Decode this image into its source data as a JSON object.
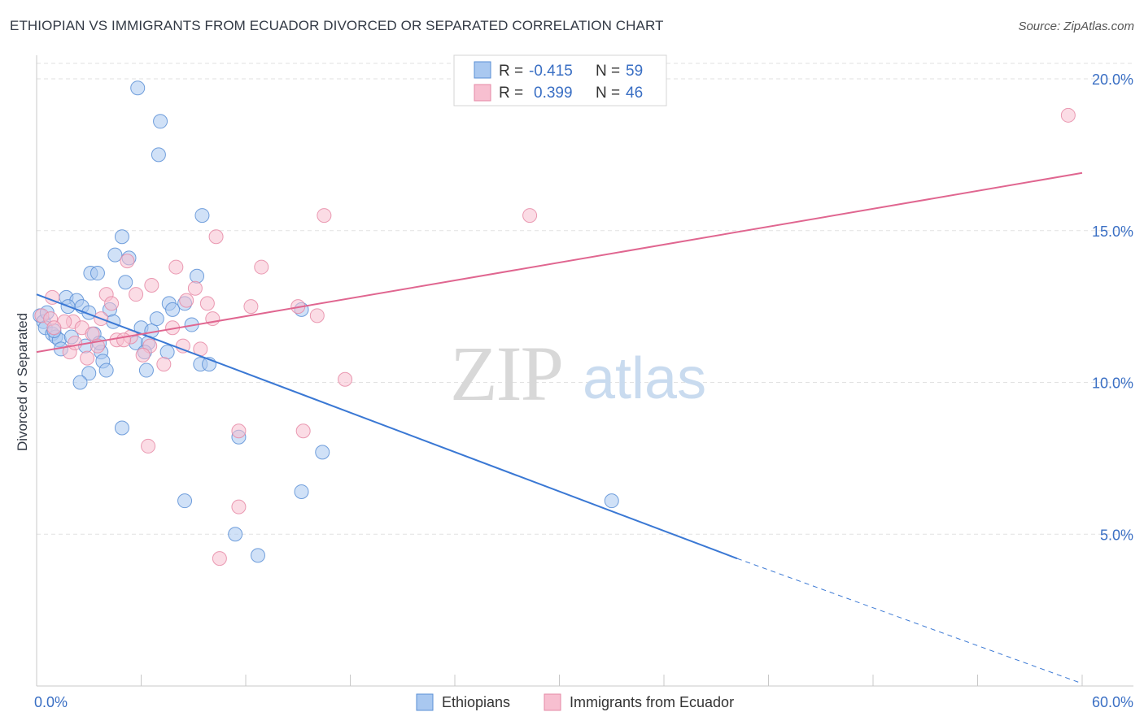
{
  "title": "ETHIOPIAN VS IMMIGRANTS FROM ECUADOR DIVORCED OR SEPARATED CORRELATION CHART",
  "source": "Source: ZipAtlas.com",
  "watermark": {
    "zip": "ZIP",
    "atlas": "atlas"
  },
  "colors": {
    "blue_fill": "#a9c8f0",
    "blue_stroke": "#5a8fd6",
    "blue_line": "#3a78d4",
    "pink_fill": "#f7bfd0",
    "pink_stroke": "#e68aa6",
    "pink_line": "#e06690",
    "tick_label": "#3a6fc4",
    "grid": "#e2e2e2"
  },
  "legend": {
    "rows": [
      {
        "r_label": "R =",
        "r_value": "-0.415",
        "n_label": "N =",
        "n_value": "59"
      },
      {
        "r_label": "R =",
        "r_value": "0.399",
        "n_label": "N =",
        "n_value": "46"
      }
    ]
  },
  "bottom_legend": [
    "Ethiopians",
    "Immigrants from Ecuador"
  ],
  "chart_data": {
    "type": "scatter",
    "title": "ETHIOPIAN VS IMMIGRANTS FROM ECUADOR DIVORCED OR SEPARATED CORRELATION CHART",
    "xlabel": "",
    "ylabel": "Divorced or Separated",
    "xlim": [
      0,
      60
    ],
    "ylim": [
      0,
      20.5
    ],
    "x_tick_labels": [
      "0.0%",
      "60.0%"
    ],
    "y_ticks": [
      5,
      10,
      15,
      20
    ],
    "y_tick_labels": [
      "5.0%",
      "10.0%",
      "15.0%",
      "20.0%"
    ],
    "grid": "horizontal dashed",
    "series": [
      {
        "name": "Ethiopians",
        "color": "#a9c8f0",
        "r": "-0.415",
        "n": "59",
        "trend": {
          "x": [
            0,
            40.2
          ],
          "y": [
            12.9,
            4.2
          ],
          "dashed_to": [
            60,
            0
          ]
        },
        "points": [
          [
            5.8,
            19.7
          ],
          [
            7.1,
            18.6
          ],
          [
            7.0,
            17.5
          ],
          [
            9.5,
            15.5
          ],
          [
            4.9,
            14.8
          ],
          [
            4.5,
            14.2
          ],
          [
            5.3,
            14.1
          ],
          [
            3.1,
            13.6
          ],
          [
            3.5,
            13.6
          ],
          [
            5.1,
            13.3
          ],
          [
            9.2,
            13.5
          ],
          [
            1.7,
            12.8
          ],
          [
            2.3,
            12.7
          ],
          [
            1.8,
            12.5
          ],
          [
            2.6,
            12.5
          ],
          [
            0.2,
            12.2
          ],
          [
            3.0,
            12.3
          ],
          [
            4.2,
            12.4
          ],
          [
            7.6,
            12.6
          ],
          [
            8.5,
            12.6
          ],
          [
            0.4,
            12.0
          ],
          [
            0.5,
            11.8
          ],
          [
            0.9,
            11.6
          ],
          [
            1.1,
            11.5
          ],
          [
            1.3,
            11.4
          ],
          [
            2.0,
            11.5
          ],
          [
            3.3,
            11.6
          ],
          [
            6.0,
            11.8
          ],
          [
            6.6,
            11.7
          ],
          [
            7.8,
            12.4
          ],
          [
            8.9,
            11.9
          ],
          [
            15.2,
            12.4
          ],
          [
            1.4,
            11.1
          ],
          [
            5.7,
            11.3
          ],
          [
            6.4,
            11.3
          ],
          [
            6.2,
            11.0
          ],
          [
            7.5,
            11.0
          ],
          [
            3.7,
            11.0
          ],
          [
            3.8,
            10.7
          ],
          [
            9.4,
            10.6
          ],
          [
            9.9,
            10.6
          ],
          [
            6.3,
            10.4
          ],
          [
            4.0,
            10.4
          ],
          [
            3.0,
            10.3
          ],
          [
            2.5,
            10.0
          ],
          [
            4.9,
            8.5
          ],
          [
            11.6,
            8.2
          ],
          [
            16.4,
            7.7
          ],
          [
            8.5,
            6.1
          ],
          [
            15.2,
            6.4
          ],
          [
            33.0,
            6.1
          ],
          [
            11.4,
            5.0
          ],
          [
            12.7,
            4.3
          ],
          [
            1.0,
            11.7
          ],
          [
            2.8,
            11.2
          ],
          [
            4.4,
            12.0
          ],
          [
            6.9,
            12.1
          ],
          [
            0.6,
            12.3
          ],
          [
            3.6,
            11.3
          ]
        ]
      },
      {
        "name": "Immigrants from Ecuador",
        "color": "#f7bfd0",
        "r": "0.399",
        "n": "46",
        "trend": {
          "x": [
            0,
            60
          ],
          "y": [
            11.0,
            16.9
          ]
        },
        "points": [
          [
            59.2,
            18.8
          ],
          [
            16.5,
            15.5
          ],
          [
            28.3,
            15.5
          ],
          [
            10.3,
            14.8
          ],
          [
            5.2,
            14.0
          ],
          [
            8.0,
            13.8
          ],
          [
            12.9,
            13.8
          ],
          [
            6.6,
            13.2
          ],
          [
            9.1,
            13.1
          ],
          [
            4.0,
            12.9
          ],
          [
            5.7,
            12.9
          ],
          [
            0.9,
            12.8
          ],
          [
            4.3,
            12.6
          ],
          [
            8.6,
            12.7
          ],
          [
            9.8,
            12.6
          ],
          [
            12.3,
            12.5
          ],
          [
            15.0,
            12.5
          ],
          [
            0.3,
            12.2
          ],
          [
            0.8,
            12.1
          ],
          [
            2.1,
            12.0
          ],
          [
            3.7,
            12.1
          ],
          [
            10.1,
            12.1
          ],
          [
            16.1,
            12.2
          ],
          [
            1.6,
            12.0
          ],
          [
            1.0,
            11.8
          ],
          [
            2.6,
            11.8
          ],
          [
            7.8,
            11.8
          ],
          [
            3.2,
            11.6
          ],
          [
            5.4,
            11.5
          ],
          [
            4.6,
            11.4
          ],
          [
            6.5,
            11.2
          ],
          [
            3.5,
            11.2
          ],
          [
            8.4,
            11.2
          ],
          [
            9.4,
            11.1
          ],
          [
            1.9,
            11.0
          ],
          [
            2.9,
            10.8
          ],
          [
            6.1,
            10.9
          ],
          [
            7.3,
            10.6
          ],
          [
            17.7,
            10.1
          ],
          [
            11.6,
            8.4
          ],
          [
            15.3,
            8.4
          ],
          [
            6.4,
            7.9
          ],
          [
            11.6,
            5.9
          ],
          [
            10.5,
            4.2
          ],
          [
            2.2,
            11.3
          ],
          [
            5.0,
            11.4
          ]
        ]
      }
    ]
  }
}
